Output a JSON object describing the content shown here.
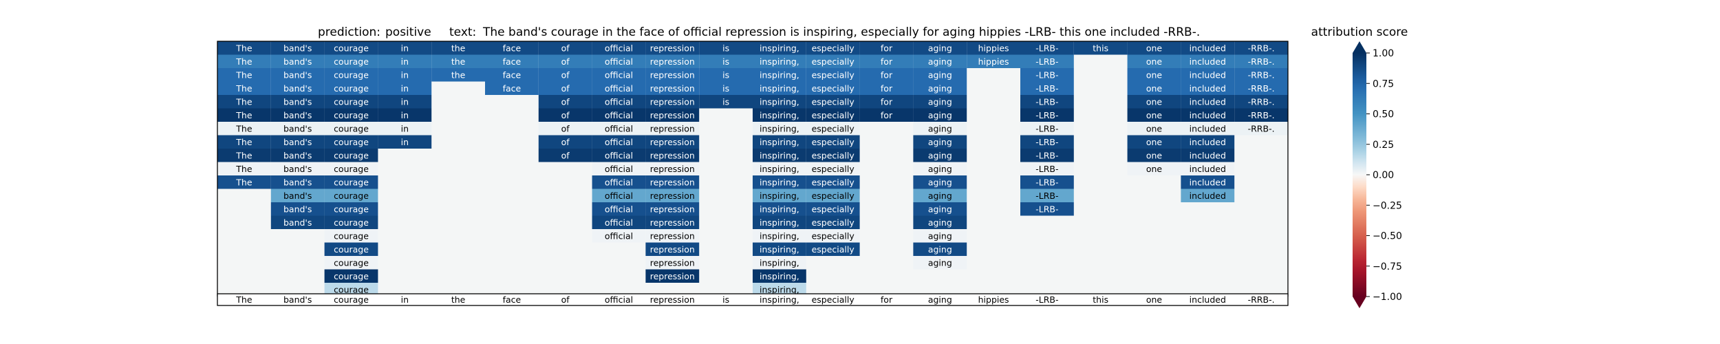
{
  "header": {
    "prediction_label": "prediction:",
    "prediction_value": "positive",
    "text_label": "text:",
    "text_value": "The band's courage in the face of official repression is inspiring, especially for aging hippies -LRB- this one included -RRB-."
  },
  "colorbar": {
    "title": "attribution score",
    "colormap": "RdBu",
    "range": [
      -1.0,
      1.0
    ],
    "ticks": [
      "1.00",
      "0.75",
      "0.50",
      "0.25",
      "0.00",
      "−0.25",
      "−0.50",
      "−0.75",
      "−1.00"
    ],
    "tick_values": [
      1.0,
      0.75,
      0.5,
      0.25,
      0.0,
      -0.25,
      -0.5,
      -0.75,
      -1.0
    ],
    "extend": "both"
  },
  "chart_data": {
    "type": "heatmap",
    "tokens": [
      "The",
      "band's",
      "courage",
      "in",
      "the",
      "face",
      "of",
      "official",
      "repression",
      "is",
      "inspiring,",
      "especially",
      "for",
      "aging",
      "hippies",
      "-LRB-",
      "this",
      "one",
      "included",
      "-RRB-."
    ],
    "rows": [
      [
        0.88,
        0.88,
        0.88,
        0.88,
        0.88,
        0.88,
        0.88,
        0.88,
        0.88,
        0.88,
        0.88,
        0.88,
        0.88,
        0.88,
        0.88,
        0.88,
        0.88,
        0.88,
        0.88,
        0.88
      ],
      [
        0.62,
        0.62,
        0.62,
        0.62,
        0.62,
        0.62,
        0.62,
        0.62,
        0.62,
        0.62,
        0.62,
        0.62,
        0.62,
        0.62,
        0.62,
        0.62,
        null,
        0.62,
        0.62,
        0.62
      ],
      [
        0.72,
        0.72,
        0.72,
        0.72,
        0.72,
        0.72,
        0.72,
        0.72,
        0.72,
        0.72,
        0.72,
        0.72,
        0.72,
        0.72,
        null,
        0.72,
        null,
        0.72,
        0.72,
        0.72
      ],
      [
        0.72,
        0.72,
        0.72,
        0.72,
        null,
        0.72,
        0.72,
        0.72,
        0.72,
        0.72,
        0.72,
        0.72,
        0.72,
        0.72,
        null,
        0.72,
        null,
        0.72,
        0.72,
        0.72
      ],
      [
        0.9,
        0.9,
        0.9,
        0.9,
        null,
        null,
        0.9,
        0.9,
        0.9,
        0.9,
        0.9,
        0.9,
        0.9,
        0.9,
        null,
        0.9,
        null,
        0.9,
        0.9,
        0.9
      ],
      [
        0.97,
        0.97,
        0.97,
        0.97,
        null,
        null,
        0.97,
        0.97,
        0.97,
        null,
        0.97,
        0.97,
        0.97,
        0.97,
        null,
        0.97,
        null,
        0.97,
        0.97,
        0.97
      ],
      [
        0.03,
        0.03,
        0.03,
        0.03,
        null,
        null,
        0.03,
        0.03,
        0.03,
        null,
        0.03,
        0.03,
        null,
        0.03,
        null,
        0.03,
        null,
        0.03,
        0.03,
        0.03
      ],
      [
        0.9,
        0.9,
        0.9,
        0.9,
        null,
        null,
        0.9,
        0.9,
        0.9,
        null,
        0.9,
        0.9,
        null,
        0.9,
        null,
        0.9,
        null,
        0.9,
        0.9,
        null
      ],
      [
        0.95,
        0.95,
        0.95,
        null,
        null,
        null,
        0.95,
        0.95,
        0.95,
        null,
        0.95,
        0.95,
        null,
        0.95,
        null,
        0.95,
        null,
        0.95,
        0.95,
        null
      ],
      [
        0.02,
        0.02,
        0.02,
        null,
        null,
        null,
        null,
        0.02,
        0.02,
        null,
        0.02,
        0.02,
        null,
        0.02,
        null,
        0.02,
        null,
        0.02,
        0.02,
        null
      ],
      [
        0.85,
        0.85,
        0.85,
        null,
        null,
        null,
        null,
        0.85,
        0.85,
        null,
        0.85,
        0.85,
        null,
        0.85,
        null,
        0.85,
        null,
        null,
        0.85,
        null
      ],
      [
        null,
        0.4,
        0.4,
        null,
        null,
        null,
        null,
        0.4,
        0.4,
        null,
        0.4,
        0.4,
        null,
        0.4,
        null,
        0.4,
        null,
        null,
        0.4,
        null
      ],
      [
        null,
        0.85,
        0.85,
        null,
        null,
        null,
        null,
        0.85,
        0.85,
        null,
        0.85,
        0.85,
        null,
        0.85,
        null,
        0.85,
        null,
        null,
        null,
        null
      ],
      [
        null,
        0.9,
        0.9,
        null,
        null,
        null,
        null,
        0.9,
        0.9,
        null,
        0.9,
        0.9,
        null,
        0.9,
        null,
        null,
        null,
        null,
        null,
        null
      ],
      [
        null,
        null,
        0.02,
        null,
        null,
        null,
        null,
        0.02,
        0.02,
        null,
        0.02,
        0.02,
        null,
        0.02,
        null,
        null,
        null,
        null,
        null,
        null
      ],
      [
        null,
        null,
        0.88,
        null,
        null,
        null,
        null,
        null,
        0.88,
        null,
        0.88,
        0.88,
        null,
        0.88,
        null,
        null,
        null,
        null,
        null,
        null
      ],
      [
        null,
        null,
        0.02,
        null,
        null,
        null,
        null,
        null,
        0.02,
        null,
        0.02,
        null,
        null,
        0.02,
        null,
        null,
        null,
        null,
        null,
        null
      ],
      [
        null,
        null,
        0.97,
        null,
        null,
        null,
        null,
        null,
        0.97,
        null,
        0.97,
        null,
        null,
        null,
        null,
        null,
        null,
        null,
        null,
        null
      ],
      [
        null,
        null,
        0.15,
        null,
        null,
        null,
        null,
        null,
        null,
        null,
        0.15,
        null,
        null,
        null,
        null,
        null,
        null,
        null,
        null,
        null
      ]
    ],
    "reference_row": [
      "The",
      "band's",
      "courage",
      "in",
      "the",
      "face",
      "of",
      "official",
      "repression",
      "is",
      "inspiring,",
      "especially",
      "for",
      "aging",
      "hippies",
      "-LRB-",
      "this",
      "one",
      "included",
      "-RRB-."
    ],
    "empty_cell_value": 0.0,
    "grid": false,
    "legend": "right colorbar"
  }
}
